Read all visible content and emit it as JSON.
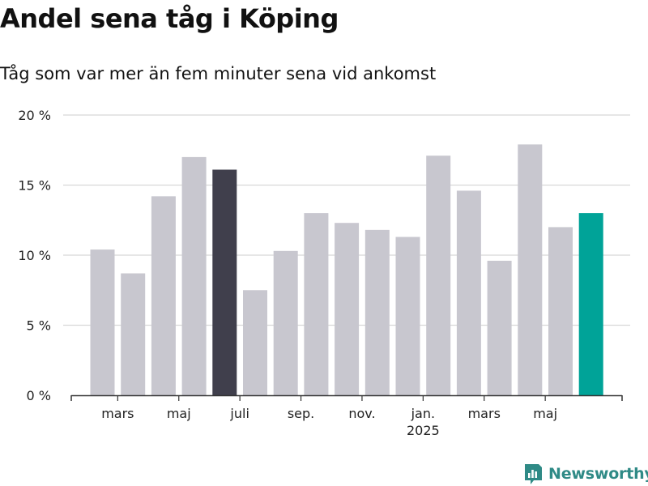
{
  "title": "Andel sena tåg i Köping",
  "subtitle": "Tåg som var mer än fem minuter sena vid ankomst",
  "brand": {
    "name": "Newsworthy",
    "icon": "newsworthy-logo-icon"
  },
  "colors": {
    "bar_default": "#c8c7cf",
    "bar_highlight": "#403f4c",
    "bar_latest": "#00a398",
    "grid": "#d8d8d8",
    "axis": "#333333",
    "brand": "#2f8a86"
  },
  "chart_data": {
    "type": "bar",
    "title": "Andel sena tåg i Köping",
    "subtitle": "Tåg som var mer än fem minuter sena vid ankomst",
    "xlabel": "",
    "ylabel": "",
    "ylim": [
      0,
      20
    ],
    "y_ticks": [
      0,
      5,
      10,
      15,
      20
    ],
    "y_tick_labels": [
      "0 %",
      "5 %",
      "10 %",
      "15 %",
      "20 %"
    ],
    "grid": true,
    "x_tick_labels": [
      {
        "label": "mars",
        "category": 1
      },
      {
        "label": "maj",
        "category": 3
      },
      {
        "label": "juli",
        "category": 5
      },
      {
        "label": "sep.",
        "category": 7
      },
      {
        "label": "nov.",
        "category": 9
      },
      {
        "label": "jan.",
        "sub": "2025",
        "category": 11
      },
      {
        "label": "mars",
        "category": 13
      },
      {
        "label": "maj",
        "category": 15
      }
    ],
    "values": [
      10.4,
      8.7,
      14.2,
      17.0,
      16.1,
      7.5,
      10.3,
      13.0,
      12.3,
      11.8,
      11.3,
      17.1,
      14.6,
      9.6,
      17.9,
      12.0,
      13.0
    ],
    "highlight": [
      {
        "index": 4,
        "color_key": "bar_highlight"
      },
      {
        "index": 16,
        "color_key": "bar_latest"
      }
    ]
  }
}
